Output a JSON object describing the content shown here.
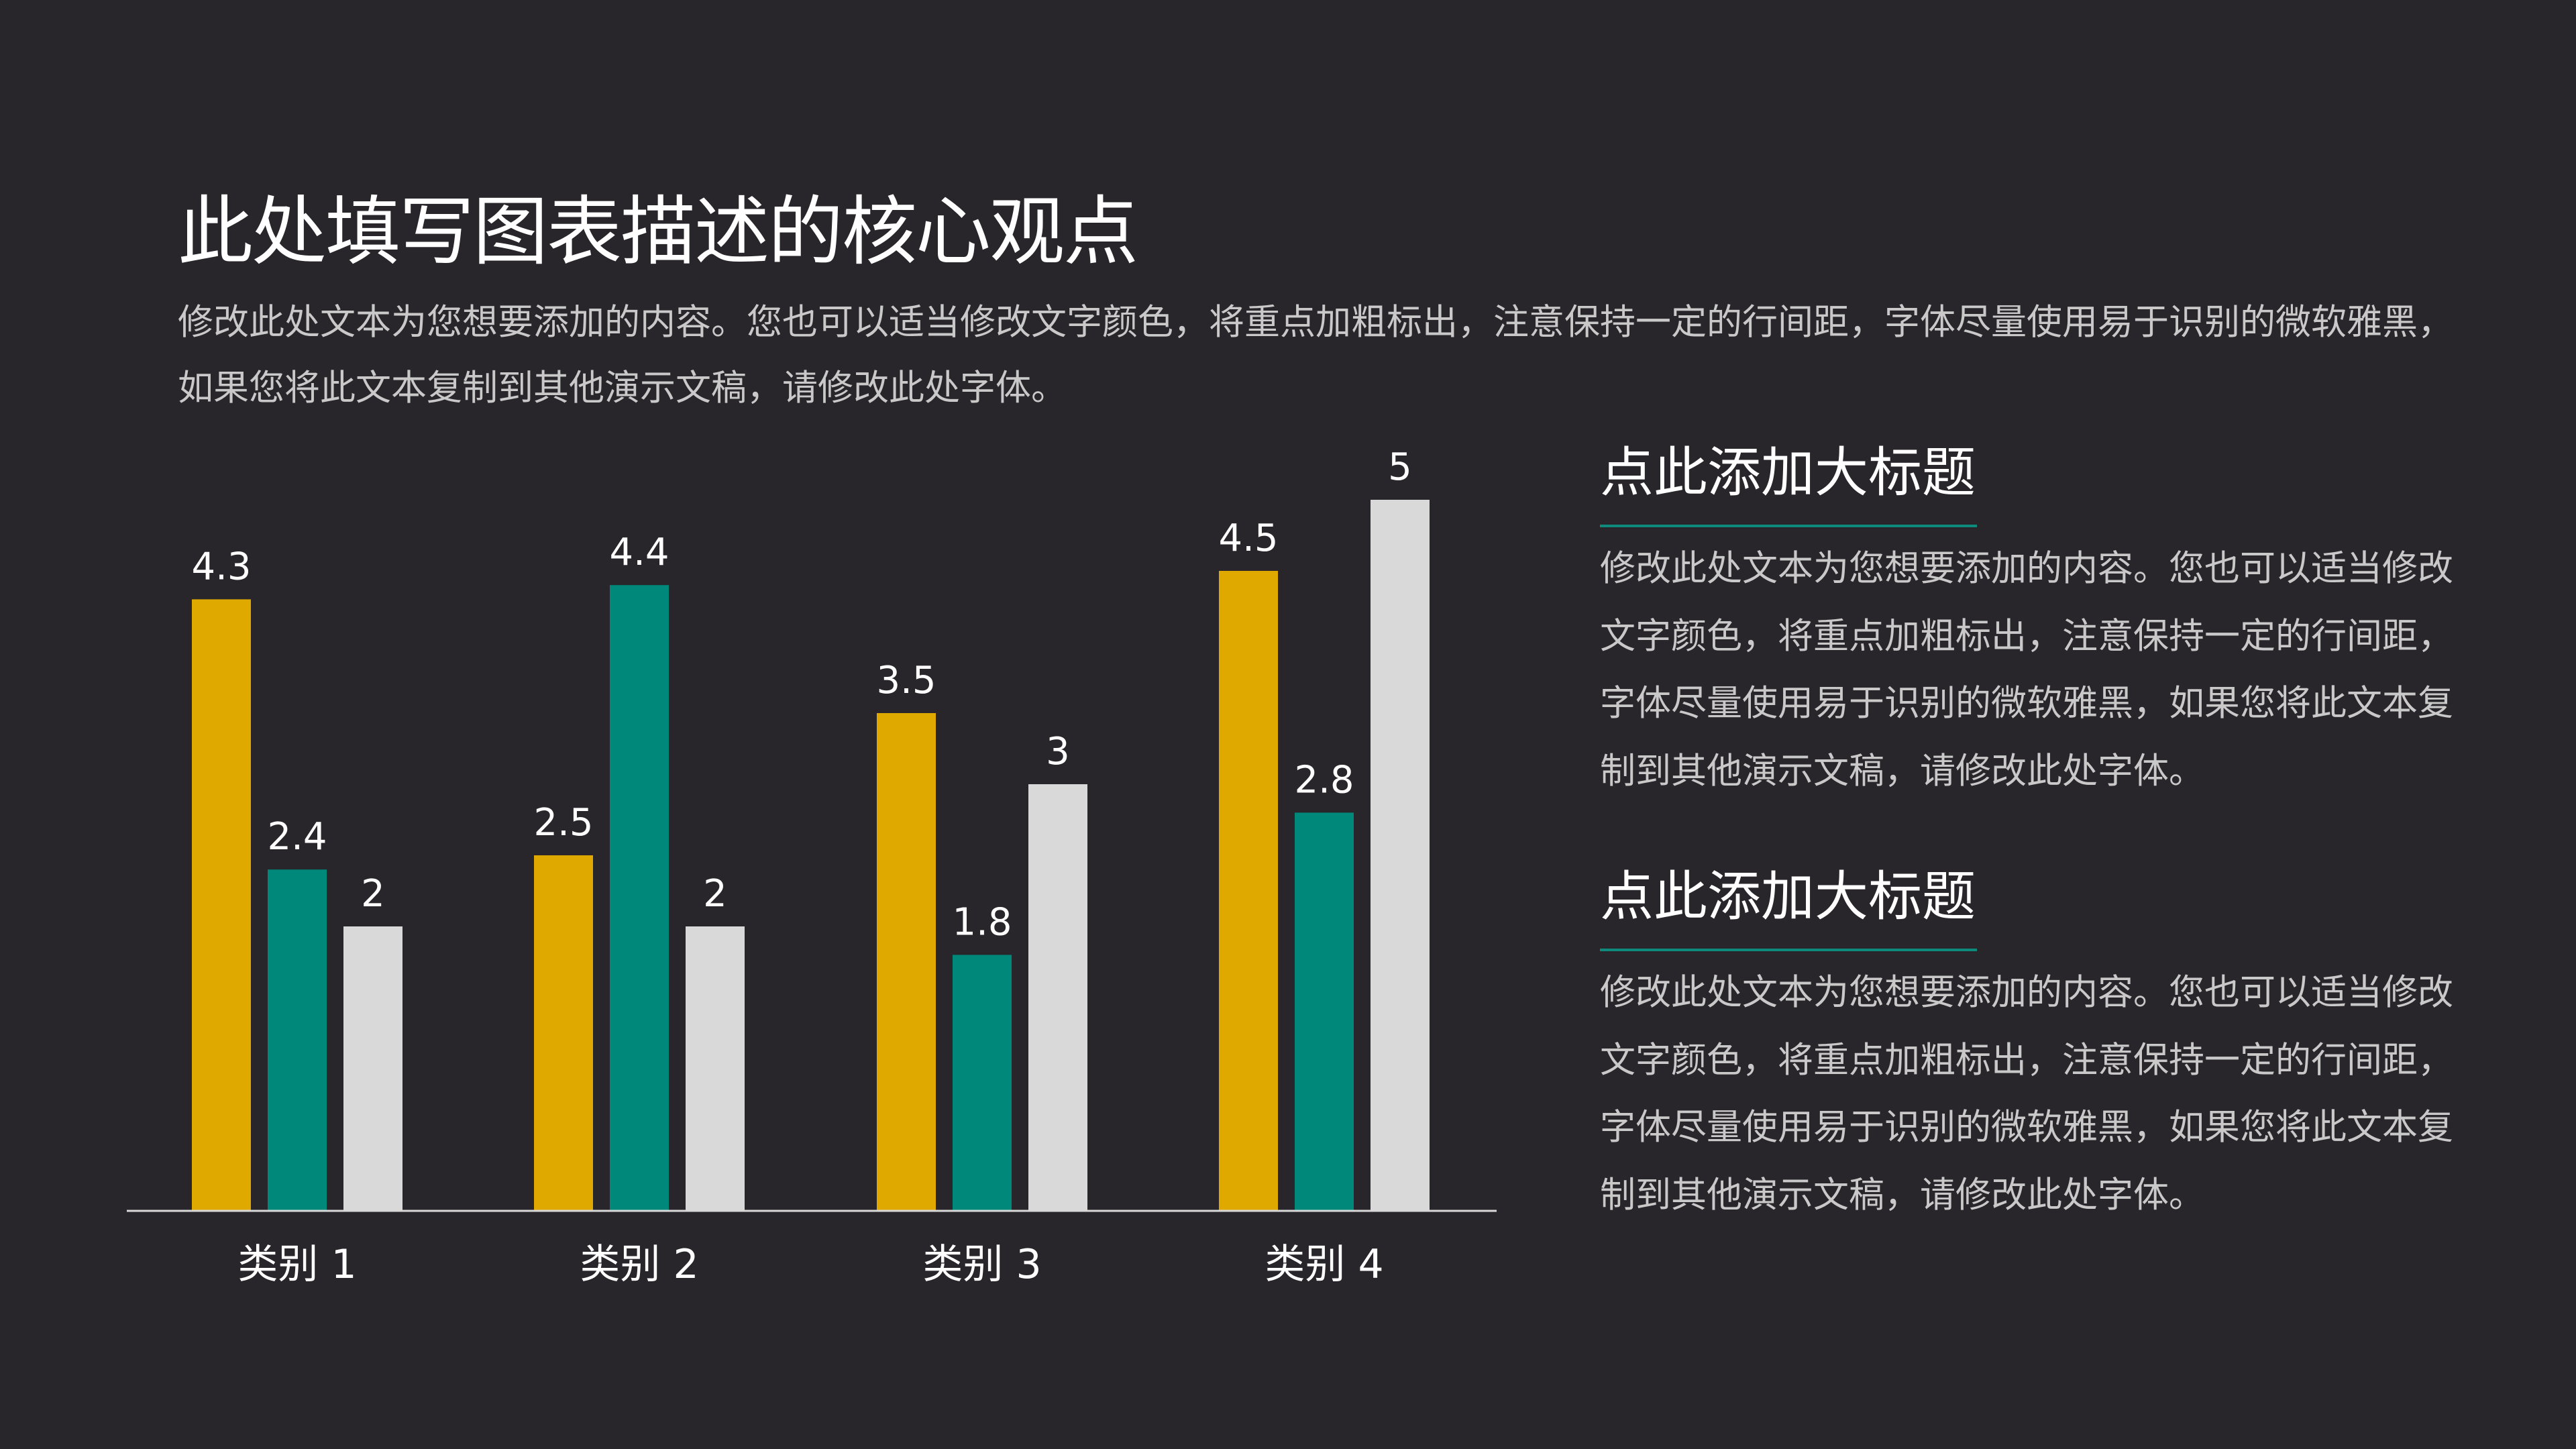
{
  "title": "此处填写图表描述的核心观点",
  "description": "修改此处文本为您想要添加的内容。您也可以适当修改文字颜色，将重点加粗标出，注意保持一定的行间距，字体尽量使用易于识别的微软雅黑，如果您将此文本复制到其他演示文稿，请修改此处字体。",
  "sections": [
    {
      "heading": "点此添加大标题",
      "body": "修改此处文本为您想要添加的内容。您也可以适当修改文字颜色，将重点加粗标出，注意保持一定的行间距，字体尽量使用易于识别的微软雅黑，如果您将此文本复制到其他演示文稿，请修改此处字体。"
    },
    {
      "heading": "点此添加大标题",
      "body": "修改此处文本为您想要添加的内容。您也可以适当修改文字颜色，将重点加粗标出，注意保持一定的行间距，字体尽量使用易于识别的微软雅黑，如果您将此文本复制到其他演示文稿，请修改此处字体。"
    }
  ],
  "colors": {
    "background": "#29262b",
    "accent_rule": "#0e8a7a"
  },
  "chart_data": {
    "type": "bar",
    "categories": [
      "类别 1",
      "类别 2",
      "类别 3",
      "类别 4"
    ],
    "series": [
      {
        "values": [
          4.3,
          2.5,
          3.5,
          4.5
        ],
        "color": "#e0a900"
      },
      {
        "values": [
          2.4,
          4.4,
          1.8,
          2.8
        ],
        "color": "#00897b"
      },
      {
        "values": [
          2,
          2,
          3,
          5
        ],
        "color": "#d9d9d9"
      }
    ],
    "data_labels": true,
    "ylim": [
      0,
      5
    ],
    "grid": false,
    "legend": "none",
    "y_axis_visible": false
  }
}
